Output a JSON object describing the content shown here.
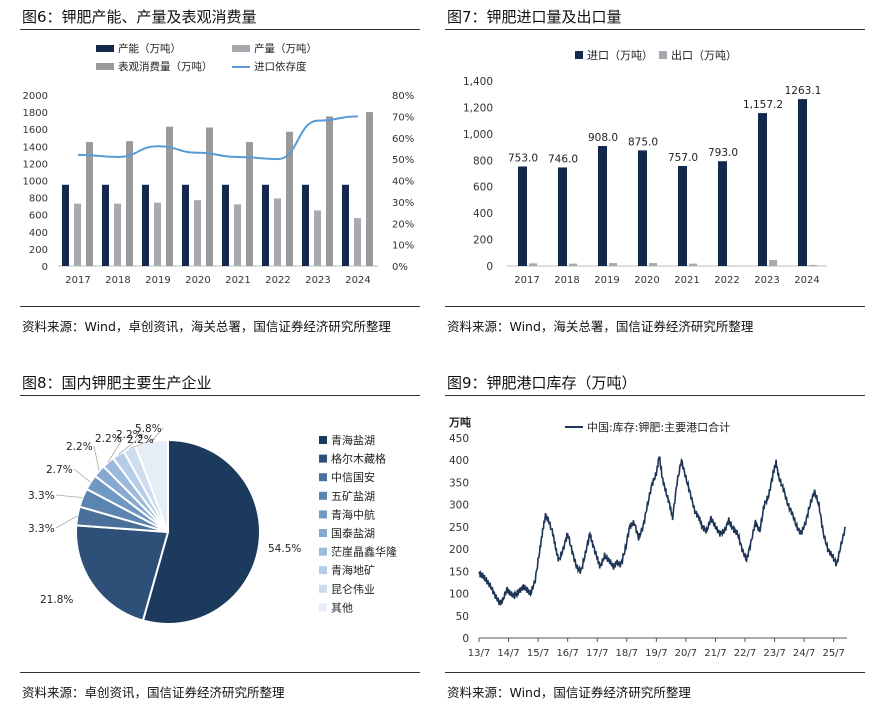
{
  "panels": {
    "fig6": {
      "title": "图6：钾肥产能、产量及表观消费量",
      "source": "资料来源：Wind，卓创资讯，海关总署，国信证券经济研究所整理"
    },
    "fig7": {
      "title": "图7：钾肥进口量及出口量",
      "source": "资料来源：Wind，海关总署，国信证券经济研究所整理"
    },
    "fig8": {
      "title": "图8：国内钾肥主要生产企业",
      "source": "资料来源：卓创资讯，国信证券经济研究所整理"
    },
    "fig9": {
      "title": "图9：钾肥港口库存（万吨）",
      "source": "资料来源：Wind，国信证券经济研究所整理"
    }
  },
  "colors": {
    "navy": "#14284b",
    "gray_light": "#a6aab0",
    "gray_mid": "#9a9a9a",
    "line_blue": "#5b9bd5",
    "line_dark": "#1f3557"
  },
  "chart_data": [
    {
      "id": "fig6",
      "type": "bar",
      "categories": [
        "2017",
        "2018",
        "2019",
        "2020",
        "2021",
        "2022",
        "2023",
        "2024"
      ],
      "series": [
        {
          "name": "产能（万吨）",
          "axis": "left",
          "values": [
            950,
            950,
            950,
            950,
            950,
            950,
            950,
            950
          ]
        },
        {
          "name": "产量（万吨）",
          "axis": "left",
          "values": [
            730,
            730,
            740,
            770,
            720,
            790,
            650,
            560
          ]
        },
        {
          "name": "表观消费量（万吨）",
          "axis": "left",
          "values": [
            1450,
            1460,
            1630,
            1620,
            1450,
            1570,
            1750,
            1800
          ]
        },
        {
          "name": "进口依存度",
          "axis": "right",
          "kind": "line",
          "values": [
            52,
            51,
            56,
            53,
            51,
            50,
            68,
            70
          ]
        }
      ],
      "ylim": [
        0,
        2000
      ],
      "yticks": [
        "0",
        "200",
        "400",
        "600",
        "800",
        "1000",
        "1200",
        "1400",
        "1600",
        "1800",
        "2000"
      ],
      "y2lim": [
        0,
        80
      ],
      "y2ticks": [
        "0%",
        "10%",
        "20%",
        "30%",
        "40%",
        "50%",
        "60%",
        "70%",
        "80%"
      ],
      "legend": "top"
    },
    {
      "id": "fig7",
      "type": "bar",
      "categories": [
        "2017",
        "2018",
        "2019",
        "2020",
        "2021",
        "2022",
        "2023",
        "2024"
      ],
      "series": [
        {
          "name": "进口（万吨）",
          "values": [
            753.0,
            746.0,
            908.0,
            875.0,
            757.0,
            793.0,
            1157.2,
            1263.1
          ],
          "labels": [
            "753.0",
            "746.0",
            "908.0",
            "875.0",
            "757.0",
            "793.0",
            "1,157.2",
            "1263.1"
          ]
        },
        {
          "name": "出口（万吨）",
          "values": [
            20,
            18,
            22,
            22,
            18,
            2,
            45,
            8
          ]
        }
      ],
      "ylim": [
        0,
        1400
      ],
      "yticks": [
        "0",
        "200",
        "400",
        "600",
        "800",
        "1,000",
        "1,200",
        "1,400"
      ],
      "legend": "top"
    },
    {
      "id": "fig8",
      "type": "pie",
      "labels": [
        "青海盐湖",
        "格尔木藏格",
        "中信国安",
        "五矿盐湖",
        "青海中航",
        "国泰盐湖",
        "茫崖晶鑫华隆",
        "青海地矿",
        "昆仑伟业",
        "其他"
      ],
      "values": [
        54.5,
        21.8,
        3.3,
        3.3,
        2.7,
        2.2,
        2.2,
        2.2,
        2.2,
        5.8
      ],
      "value_labels": [
        "54.5%",
        "21.8%",
        "3.3%",
        "3.3%",
        "2.7%",
        "2.2%",
        "2.2%",
        "2.2%",
        "2.2%",
        "5.8%"
      ],
      "legend": "right"
    },
    {
      "id": "fig9",
      "type": "line",
      "title": "中国:库存:钾肥:主要港口合计",
      "ylabel": "万吨",
      "ylim": [
        0,
        450
      ],
      "yticks": [
        "0",
        "50",
        "100",
        "150",
        "200",
        "250",
        "300",
        "350",
        "400",
        "450"
      ],
      "xticks": [
        "13/7",
        "14/7",
        "15/7",
        "16/7",
        "17/7",
        "18/7",
        "19/7",
        "20/7",
        "21/7",
        "22/7",
        "23/7",
        "24/7",
        "25/7"
      ],
      "xrange": [
        2013.5,
        2025.95
      ],
      "series": [
        {
          "name": "中国:库存:钾肥:主要港口合计",
          "x": [
            2013.5,
            2013.62,
            2013.75,
            2013.9,
            2014.05,
            2014.2,
            2014.3,
            2014.45,
            2014.55,
            2014.7,
            2014.85,
            2015.0,
            2015.1,
            2015.25,
            2015.4,
            2015.55,
            2015.65,
            2015.75,
            2015.85,
            2016.0,
            2016.1,
            2016.2,
            2016.35,
            2016.5,
            2016.65,
            2016.8,
            2016.95,
            2017.1,
            2017.25,
            2017.35,
            2017.5,
            2017.6,
            2017.75,
            2017.9,
            2018.05,
            2018.15,
            2018.3,
            2018.45,
            2018.6,
            2018.75,
            2018.9,
            2019.05,
            2019.2,
            2019.35,
            2019.5,
            2019.6,
            2019.7,
            2019.82,
            2019.95,
            2020.05,
            2020.2,
            2020.35,
            2020.5,
            2020.65,
            2020.8,
            2020.95,
            2021.05,
            2021.2,
            2021.35,
            2021.5,
            2021.65,
            2021.8,
            2021.95,
            2022.1,
            2022.25,
            2022.4,
            2022.55,
            2022.7,
            2022.85,
            2023.0,
            2023.15,
            2023.3,
            2023.45,
            2023.55,
            2023.65,
            2023.8,
            2023.95,
            2024.1,
            2024.25,
            2024.4,
            2024.55,
            2024.7,
            2024.85,
            2025.0,
            2025.15,
            2025.3,
            2025.45,
            2025.6,
            2025.75,
            2025.9
          ],
          "y": [
            145,
            140,
            130,
            115,
            95,
            78,
            85,
            110,
            100,
            95,
            105,
            115,
            110,
            100,
            130,
            195,
            240,
            275,
            265,
            235,
            200,
            175,
            200,
            235,
            195,
            160,
            150,
            190,
            235,
            210,
            180,
            160,
            185,
            175,
            160,
            170,
            165,
            200,
            250,
            260,
            225,
            250,
            300,
            345,
            370,
            410,
            360,
            330,
            300,
            270,
            350,
            400,
            360,
            325,
            285,
            270,
            250,
            240,
            270,
            250,
            235,
            240,
            265,
            245,
            235,
            200,
            175,
            215,
            260,
            240,
            300,
            320,
            370,
            395,
            360,
            335,
            300,
            280,
            250,
            235,
            260,
            300,
            330,
            300,
            235,
            200,
            185,
            165,
            210,
            250
          ]
        }
      ],
      "legend": "top"
    }
  ]
}
